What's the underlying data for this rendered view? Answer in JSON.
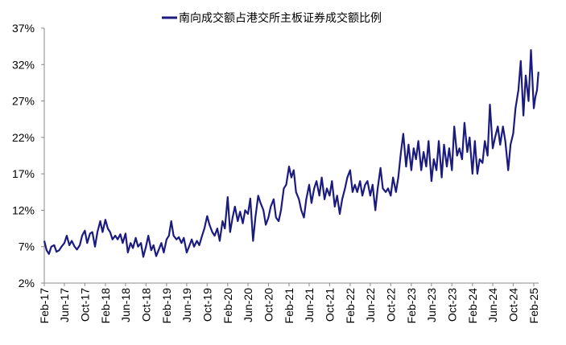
{
  "chart_data": {
    "type": "line",
    "title": "",
    "xlabel": "",
    "ylabel": "",
    "ylim": [
      2,
      37
    ],
    "yticks": [
      "2%",
      "7%",
      "12%",
      "17%",
      "22%",
      "27%",
      "32%",
      "37%"
    ],
    "ytick_values": [
      2,
      7,
      12,
      17,
      22,
      27,
      32,
      37
    ],
    "xticks": [
      "Feb-17",
      "Jun-17",
      "Oct-17",
      "Feb-18",
      "Jun-18",
      "Oct-18",
      "Feb-19",
      "Jun-19",
      "Oct-19",
      "Feb-20",
      "Jun-20",
      "Oct-20",
      "Feb-21",
      "Jun-21",
      "Oct-21",
      "Feb-22",
      "Jun-22",
      "Oct-22",
      "Feb-23",
      "Jun-23",
      "Oct-23",
      "Feb-24",
      "Jun-24",
      "Oct-24",
      "Feb-25"
    ],
    "xtick_dates": [
      "2017-02-01",
      "2017-06-01",
      "2017-10-01",
      "2018-02-01",
      "2018-06-01",
      "2018-10-01",
      "2019-02-01",
      "2019-06-01",
      "2019-10-01",
      "2020-02-01",
      "2020-06-01",
      "2020-10-01",
      "2021-02-01",
      "2021-06-01",
      "2021-10-01",
      "2022-02-01",
      "2022-06-01",
      "2022-10-01",
      "2023-02-01",
      "2023-06-01",
      "2023-10-01",
      "2024-02-01",
      "2024-06-01",
      "2024-10-01",
      "2025-02-01"
    ],
    "grid": false,
    "legend": "top-center",
    "color": "#1a1a80",
    "series": [
      {
        "name": "南向成交额占港交所主板证券成交额比例",
        "unit": "%",
        "points": [
          [
            "2017-02-01",
            7.8
          ],
          [
            "2017-02-15",
            6.5
          ],
          [
            "2017-03-01",
            6.0
          ],
          [
            "2017-03-15",
            7.0
          ],
          [
            "2017-04-01",
            7.2
          ],
          [
            "2017-04-15",
            6.3
          ],
          [
            "2017-05-01",
            6.5
          ],
          [
            "2017-05-15",
            7.0
          ],
          [
            "2017-06-01",
            7.5
          ],
          [
            "2017-06-15",
            8.5
          ],
          [
            "2017-07-01",
            7.2
          ],
          [
            "2017-07-15",
            7.8
          ],
          [
            "2017-08-01",
            7.0
          ],
          [
            "2017-08-15",
            6.6
          ],
          [
            "2017-09-01",
            7.2
          ],
          [
            "2017-09-15",
            8.5
          ],
          [
            "2017-10-01",
            9.2
          ],
          [
            "2017-10-15",
            7.5
          ],
          [
            "2017-11-01",
            8.8
          ],
          [
            "2017-11-15",
            9.0
          ],
          [
            "2017-12-01",
            7.0
          ],
          [
            "2017-12-15",
            9.0
          ],
          [
            "2018-01-01",
            10.5
          ],
          [
            "2018-01-15",
            9.0
          ],
          [
            "2018-02-01",
            10.7
          ],
          [
            "2018-02-15",
            9.5
          ],
          [
            "2018-03-01",
            9.0
          ],
          [
            "2018-03-15",
            8.0
          ],
          [
            "2018-04-01",
            8.5
          ],
          [
            "2018-04-15",
            8.0
          ],
          [
            "2018-05-01",
            8.7
          ],
          [
            "2018-05-15",
            7.5
          ],
          [
            "2018-06-01",
            8.8
          ],
          [
            "2018-06-15",
            6.2
          ],
          [
            "2018-07-01",
            7.5
          ],
          [
            "2018-07-15",
            6.8
          ],
          [
            "2018-08-01",
            8.2
          ],
          [
            "2018-08-15",
            7.0
          ],
          [
            "2018-09-01",
            7.5
          ],
          [
            "2018-09-15",
            5.6
          ],
          [
            "2018-10-01",
            7.0
          ],
          [
            "2018-10-15",
            8.5
          ],
          [
            "2018-11-01",
            6.5
          ],
          [
            "2018-11-15",
            7.2
          ],
          [
            "2018-12-01",
            5.7
          ],
          [
            "2018-12-15",
            6.5
          ],
          [
            "2019-01-01",
            7.5
          ],
          [
            "2019-01-15",
            6.2
          ],
          [
            "2019-02-01",
            8.0
          ],
          [
            "2019-02-15",
            8.5
          ],
          [
            "2019-03-01",
            10.5
          ],
          [
            "2019-03-15",
            8.5
          ],
          [
            "2019-04-01",
            8.0
          ],
          [
            "2019-04-15",
            8.3
          ],
          [
            "2019-05-01",
            7.5
          ],
          [
            "2019-05-15",
            8.2
          ],
          [
            "2019-06-01",
            6.2
          ],
          [
            "2019-06-15",
            7.0
          ],
          [
            "2019-07-01",
            8.0
          ],
          [
            "2019-07-15",
            7.0
          ],
          [
            "2019-08-01",
            7.8
          ],
          [
            "2019-08-15",
            7.2
          ],
          [
            "2019-09-01",
            8.5
          ],
          [
            "2019-09-15",
            9.5
          ],
          [
            "2019-10-01",
            11.2
          ],
          [
            "2019-10-15",
            10.0
          ],
          [
            "2019-11-01",
            9.0
          ],
          [
            "2019-11-15",
            8.5
          ],
          [
            "2019-12-01",
            9.5
          ],
          [
            "2019-12-15",
            7.8
          ],
          [
            "2020-01-01",
            10.5
          ],
          [
            "2020-01-15",
            9.5
          ],
          [
            "2020-02-01",
            13.8
          ],
          [
            "2020-02-15",
            9.0
          ],
          [
            "2020-03-01",
            11.0
          ],
          [
            "2020-03-15",
            12.5
          ],
          [
            "2020-04-01",
            10.5
          ],
          [
            "2020-04-15",
            11.8
          ],
          [
            "2020-05-01",
            10.2
          ],
          [
            "2020-05-15",
            12.0
          ],
          [
            "2020-06-01",
            11.5
          ],
          [
            "2020-06-15",
            13.6
          ],
          [
            "2020-07-01",
            7.8
          ],
          [
            "2020-07-15",
            11.0
          ],
          [
            "2020-08-01",
            14.0
          ],
          [
            "2020-08-15",
            13.0
          ],
          [
            "2020-09-01",
            12.0
          ],
          [
            "2020-09-15",
            10.0
          ],
          [
            "2020-10-01",
            11.0
          ],
          [
            "2020-10-15",
            12.5
          ],
          [
            "2020-11-01",
            13.5
          ],
          [
            "2020-11-15",
            11.0
          ],
          [
            "2020-12-01",
            10.5
          ],
          [
            "2020-12-15",
            12.0
          ],
          [
            "2021-01-01",
            15.0
          ],
          [
            "2021-01-15",
            15.5
          ],
          [
            "2021-02-01",
            18.0
          ],
          [
            "2021-02-15",
            16.5
          ],
          [
            "2021-03-01",
            17.5
          ],
          [
            "2021-03-15",
            14.5
          ],
          [
            "2021-04-01",
            13.5
          ],
          [
            "2021-04-15",
            12.0
          ],
          [
            "2021-05-01",
            11.0
          ],
          [
            "2021-05-15",
            13.5
          ],
          [
            "2021-06-01",
            15.5
          ],
          [
            "2021-06-15",
            13.0
          ],
          [
            "2021-07-01",
            15.0
          ],
          [
            "2021-07-15",
            16.0
          ],
          [
            "2021-08-01",
            14.0
          ],
          [
            "2021-08-15",
            16.5
          ],
          [
            "2021-09-01",
            13.5
          ],
          [
            "2021-09-15",
            15.0
          ],
          [
            "2021-10-01",
            14.0
          ],
          [
            "2021-10-15",
            16.0
          ],
          [
            "2021-11-01",
            12.5
          ],
          [
            "2021-11-15",
            14.0
          ],
          [
            "2021-12-01",
            11.5
          ],
          [
            "2021-12-15",
            13.5
          ],
          [
            "2022-01-01",
            15.0
          ],
          [
            "2022-01-15",
            16.5
          ],
          [
            "2022-02-01",
            17.5
          ],
          [
            "2022-02-15",
            14.5
          ],
          [
            "2022-03-01",
            15.5
          ],
          [
            "2022-03-15",
            14.5
          ],
          [
            "2022-04-01",
            16.0
          ],
          [
            "2022-04-15",
            14.0
          ],
          [
            "2022-05-01",
            15.5
          ],
          [
            "2022-05-15",
            16.0
          ],
          [
            "2022-06-01",
            14.0
          ],
          [
            "2022-06-15",
            15.5
          ],
          [
            "2022-07-01",
            12.0
          ],
          [
            "2022-07-15",
            15.0
          ],
          [
            "2022-08-01",
            17.8
          ],
          [
            "2022-08-15",
            15.0
          ],
          [
            "2022-09-01",
            14.5
          ],
          [
            "2022-09-15",
            15.0
          ],
          [
            "2022-10-01",
            14.0
          ],
          [
            "2022-10-15",
            16.5
          ],
          [
            "2022-11-01",
            14.5
          ],
          [
            "2022-11-15",
            16.5
          ],
          [
            "2022-12-01",
            20.0
          ],
          [
            "2022-12-15",
            22.5
          ],
          [
            "2023-01-01",
            18.0
          ],
          [
            "2023-01-15",
            21.0
          ],
          [
            "2023-02-01",
            17.5
          ],
          [
            "2023-02-15",
            20.5
          ],
          [
            "2023-03-01",
            19.0
          ],
          [
            "2023-03-15",
            21.5
          ],
          [
            "2023-04-01",
            17.5
          ],
          [
            "2023-04-15",
            20.0
          ],
          [
            "2023-05-01",
            18.0
          ],
          [
            "2023-05-15",
            21.5
          ],
          [
            "2023-06-01",
            16.0
          ],
          [
            "2023-06-15",
            19.0
          ],
          [
            "2023-07-01",
            17.5
          ],
          [
            "2023-07-15",
            21.5
          ],
          [
            "2023-08-01",
            16.5
          ],
          [
            "2023-08-15",
            21.0
          ],
          [
            "2023-09-01",
            18.0
          ],
          [
            "2023-09-15",
            20.5
          ],
          [
            "2023-10-01",
            17.5
          ],
          [
            "2023-10-15",
            23.5
          ],
          [
            "2023-11-01",
            19.5
          ],
          [
            "2023-11-15",
            20.5
          ],
          [
            "2023-12-01",
            19.0
          ],
          [
            "2023-12-15",
            24.0
          ],
          [
            "2024-01-01",
            20.0
          ],
          [
            "2024-01-15",
            22.0
          ],
          [
            "2024-02-01",
            17.0
          ],
          [
            "2024-02-15",
            21.5
          ],
          [
            "2024-03-01",
            17.0
          ],
          [
            "2024-03-15",
            19.0
          ],
          [
            "2024-04-01",
            18.5
          ],
          [
            "2024-04-15",
            21.5
          ],
          [
            "2024-05-01",
            19.5
          ],
          [
            "2024-05-15",
            26.5
          ],
          [
            "2024-06-01",
            20.5
          ],
          [
            "2024-06-15",
            22.0
          ],
          [
            "2024-07-01",
            23.5
          ],
          [
            "2024-07-15",
            21.0
          ],
          [
            "2024-08-01",
            23.5
          ],
          [
            "2024-08-15",
            21.5
          ],
          [
            "2024-09-01",
            17.5
          ],
          [
            "2024-09-15",
            21.0
          ],
          [
            "2024-10-01",
            22.5
          ],
          [
            "2024-10-15",
            26.0
          ],
          [
            "2024-11-01",
            28.5
          ],
          [
            "2024-11-15",
            32.5
          ],
          [
            "2024-12-01",
            25.0
          ],
          [
            "2024-12-15",
            30.5
          ],
          [
            "2025-01-01",
            27.0
          ],
          [
            "2025-01-15",
            34.0
          ],
          [
            "2025-02-01",
            26.0
          ],
          [
            "2025-02-10",
            27.5
          ],
          [
            "2025-02-20",
            28.5
          ],
          [
            "2025-03-01",
            31.0
          ]
        ]
      }
    ]
  }
}
